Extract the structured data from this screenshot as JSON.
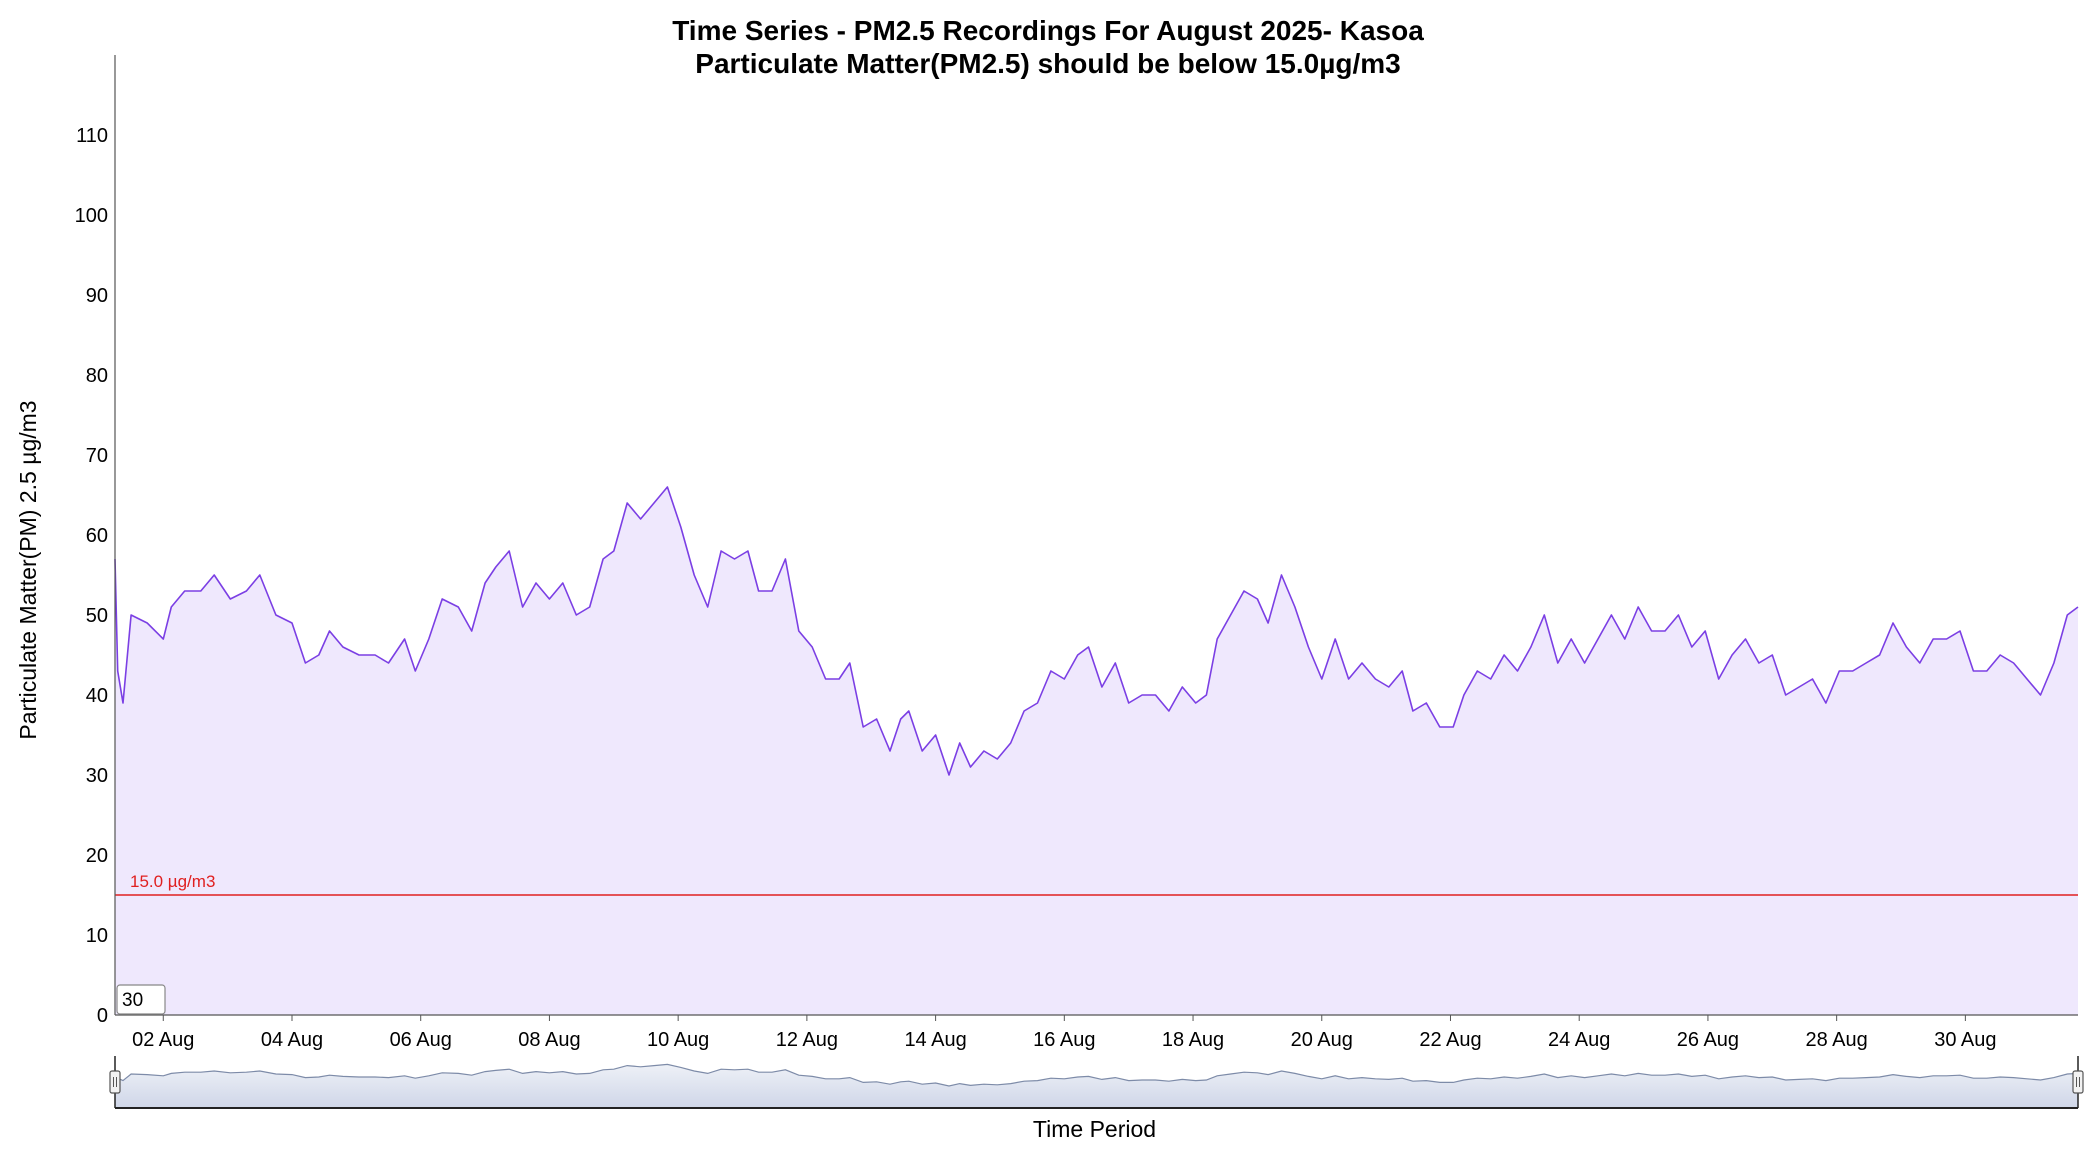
{
  "chart_data": {
    "type": "area",
    "title": "Time Series - PM2.5 Recordings For August 2025- Kasoa",
    "subtitle": "Particulate Matter(PM2.5) should be below 15.0µg/m3",
    "xlabel": "Time Period",
    "ylabel": "Particulate Matter(PM) 2.5 µg/m3",
    "x_start": "2025-08-01",
    "x_end": "2025-08-31",
    "xlim": [
      "2025-08-01T06:00",
      "2025-08-31T18:00"
    ],
    "ylim": [
      0,
      120
    ],
    "yticks": [
      0,
      10,
      20,
      30,
      40,
      50,
      60,
      70,
      80,
      90,
      100,
      110
    ],
    "xtick_labels": [
      "02 Aug",
      "04 Aug",
      "06 Aug",
      "08 Aug",
      "10 Aug",
      "12 Aug",
      "14 Aug",
      "16 Aug",
      "18 Aug",
      "20 Aug",
      "22 Aug",
      "24 Aug",
      "26 Aug",
      "28 Aug",
      "30 Aug"
    ],
    "xtick_dates": [
      "2025-08-02",
      "2025-08-04",
      "2025-08-06",
      "2025-08-08",
      "2025-08-10",
      "2025-08-12",
      "2025-08-14",
      "2025-08-16",
      "2025-08-18",
      "2025-08-20",
      "2025-08-22",
      "2025-08-24",
      "2025-08-26",
      "2025-08-28",
      "2025-08-30"
    ],
    "threshold": {
      "value": 15.0,
      "label": "15.0 µg/m3",
      "color": "#e02020"
    },
    "series": [
      {
        "color": "#7b3fe4",
        "fill": "#efe8fd",
        "points": [
          [
            "2025-08-01T06:00",
            57
          ],
          [
            "2025-08-01T07:00",
            43
          ],
          [
            "2025-08-01T09:00",
            39
          ],
          [
            "2025-08-01T12:00",
            50
          ],
          [
            "2025-08-01T18:00",
            49
          ],
          [
            "2025-08-02T00:00",
            47
          ],
          [
            "2025-08-02T03:00",
            51
          ],
          [
            "2025-08-02T08:00",
            53
          ],
          [
            "2025-08-02T14:00",
            53
          ],
          [
            "2025-08-02T19:00",
            55
          ],
          [
            "2025-08-03T01:00",
            52
          ],
          [
            "2025-08-03T07:00",
            53
          ],
          [
            "2025-08-03T12:00",
            55
          ],
          [
            "2025-08-03T18:00",
            50
          ],
          [
            "2025-08-04T00:00",
            49
          ],
          [
            "2025-08-04T05:00",
            44
          ],
          [
            "2025-08-04T10:00",
            45
          ],
          [
            "2025-08-04T14:00",
            48
          ],
          [
            "2025-08-04T19:00",
            46
          ],
          [
            "2025-08-05T01:00",
            45
          ],
          [
            "2025-08-05T07:00",
            45
          ],
          [
            "2025-08-05T12:00",
            44
          ],
          [
            "2025-08-05T18:00",
            47
          ],
          [
            "2025-08-05T22:00",
            43
          ],
          [
            "2025-08-06T03:00",
            47
          ],
          [
            "2025-08-06T08:00",
            52
          ],
          [
            "2025-08-06T14:00",
            51
          ],
          [
            "2025-08-06T19:00",
            48
          ],
          [
            "2025-08-07T00:00",
            54
          ],
          [
            "2025-08-07T04:00",
            56
          ],
          [
            "2025-08-07T09:00",
            58
          ],
          [
            "2025-08-07T14:00",
            51
          ],
          [
            "2025-08-07T19:00",
            54
          ],
          [
            "2025-08-08T00:00",
            52
          ],
          [
            "2025-08-08T05:00",
            54
          ],
          [
            "2025-08-08T10:00",
            50
          ],
          [
            "2025-08-08T15:00",
            51
          ],
          [
            "2025-08-08T20:00",
            57
          ],
          [
            "2025-08-09T00:00",
            58
          ],
          [
            "2025-08-09T05:00",
            64
          ],
          [
            "2025-08-09T10:00",
            62
          ],
          [
            "2025-08-09T15:00",
            64
          ],
          [
            "2025-08-09T20:00",
            66
          ],
          [
            "2025-08-10T01:00",
            61
          ],
          [
            "2025-08-10T06:00",
            55
          ],
          [
            "2025-08-10T11:00",
            51
          ],
          [
            "2025-08-10T16:00",
            58
          ],
          [
            "2025-08-10T21:00",
            57
          ],
          [
            "2025-08-11T02:00",
            58
          ],
          [
            "2025-08-11T06:00",
            53
          ],
          [
            "2025-08-11T11:00",
            53
          ],
          [
            "2025-08-11T16:00",
            57
          ],
          [
            "2025-08-11T21:00",
            48
          ],
          [
            "2025-08-12T02:00",
            46
          ],
          [
            "2025-08-12T07:00",
            42
          ],
          [
            "2025-08-12T12:00",
            42
          ],
          [
            "2025-08-12T16:00",
            44
          ],
          [
            "2025-08-12T21:00",
            36
          ],
          [
            "2025-08-13T02:00",
            37
          ],
          [
            "2025-08-13T07:00",
            33
          ],
          [
            "2025-08-13T11:00",
            37
          ],
          [
            "2025-08-13T14:00",
            38
          ],
          [
            "2025-08-13T19:00",
            33
          ],
          [
            "2025-08-14T00:00",
            35
          ],
          [
            "2025-08-14T05:00",
            30
          ],
          [
            "2025-08-14T09:00",
            34
          ],
          [
            "2025-08-14T13:00",
            31
          ],
          [
            "2025-08-14T18:00",
            33
          ],
          [
            "2025-08-14T23:00",
            32
          ],
          [
            "2025-08-15T04:00",
            34
          ],
          [
            "2025-08-15T09:00",
            38
          ],
          [
            "2025-08-15T14:00",
            39
          ],
          [
            "2025-08-15T19:00",
            43
          ],
          [
            "2025-08-16T00:00",
            42
          ],
          [
            "2025-08-16T05:00",
            45
          ],
          [
            "2025-08-16T09:00",
            46
          ],
          [
            "2025-08-16T14:00",
            41
          ],
          [
            "2025-08-16T19:00",
            44
          ],
          [
            "2025-08-17T00:00",
            39
          ],
          [
            "2025-08-17T05:00",
            40
          ],
          [
            "2025-08-17T10:00",
            40
          ],
          [
            "2025-08-17T15:00",
            38
          ],
          [
            "2025-08-17T20:00",
            41
          ],
          [
            "2025-08-18T01:00",
            39
          ],
          [
            "2025-08-18T05:00",
            40
          ],
          [
            "2025-08-18T09:00",
            47
          ],
          [
            "2025-08-18T14:00",
            50
          ],
          [
            "2025-08-18T19:00",
            53
          ],
          [
            "2025-08-19T00:00",
            52
          ],
          [
            "2025-08-19T04:00",
            49
          ],
          [
            "2025-08-19T09:00",
            55
          ],
          [
            "2025-08-19T14:00",
            51
          ],
          [
            "2025-08-19T19:00",
            46
          ],
          [
            "2025-08-20T00:00",
            42
          ],
          [
            "2025-08-20T05:00",
            47
          ],
          [
            "2025-08-20T10:00",
            42
          ],
          [
            "2025-08-20T15:00",
            44
          ],
          [
            "2025-08-20T20:00",
            42
          ],
          [
            "2025-08-21T01:00",
            41
          ],
          [
            "2025-08-21T06:00",
            43
          ],
          [
            "2025-08-21T10:00",
            38
          ],
          [
            "2025-08-21T15:00",
            39
          ],
          [
            "2025-08-21T20:00",
            36
          ],
          [
            "2025-08-22T01:00",
            36
          ],
          [
            "2025-08-22T05:00",
            40
          ],
          [
            "2025-08-22T10:00",
            43
          ],
          [
            "2025-08-22T15:00",
            42
          ],
          [
            "2025-08-22T20:00",
            45
          ],
          [
            "2025-08-23T01:00",
            43
          ],
          [
            "2025-08-23T06:00",
            46
          ],
          [
            "2025-08-23T11:00",
            50
          ],
          [
            "2025-08-23T16:00",
            44
          ],
          [
            "2025-08-23T21:00",
            47
          ],
          [
            "2025-08-24T02:00",
            44
          ],
          [
            "2025-08-24T07:00",
            47
          ],
          [
            "2025-08-24T12:00",
            50
          ],
          [
            "2025-08-24T17:00",
            47
          ],
          [
            "2025-08-24T22:00",
            51
          ],
          [
            "2025-08-25T03:00",
            48
          ],
          [
            "2025-08-25T08:00",
            48
          ],
          [
            "2025-08-25T13:00",
            50
          ],
          [
            "2025-08-25T18:00",
            46
          ],
          [
            "2025-08-25T23:00",
            48
          ],
          [
            "2025-08-26T04:00",
            42
          ],
          [
            "2025-08-26T09:00",
            45
          ],
          [
            "2025-08-26T14:00",
            47
          ],
          [
            "2025-08-26T19:00",
            44
          ],
          [
            "2025-08-27T00:00",
            45
          ],
          [
            "2025-08-27T05:00",
            40
          ],
          [
            "2025-08-27T10:00",
            41
          ],
          [
            "2025-08-27T15:00",
            42
          ],
          [
            "2025-08-27T20:00",
            39
          ],
          [
            "2025-08-28T01:00",
            43
          ],
          [
            "2025-08-28T06:00",
            43
          ],
          [
            "2025-08-28T11:00",
            44
          ],
          [
            "2025-08-28T16:00",
            45
          ],
          [
            "2025-08-28T21:00",
            49
          ],
          [
            "2025-08-29T02:00",
            46
          ],
          [
            "2025-08-29T07:00",
            44
          ],
          [
            "2025-08-29T12:00",
            47
          ],
          [
            "2025-08-29T17:00",
            47
          ],
          [
            "2025-08-29T22:00",
            48
          ],
          [
            "2025-08-30T03:00",
            43
          ],
          [
            "2025-08-30T08:00",
            43
          ],
          [
            "2025-08-30T13:00",
            45
          ],
          [
            "2025-08-30T18:00",
            44
          ],
          [
            "2025-08-30T23:00",
            42
          ],
          [
            "2025-08-31T04:00",
            40
          ],
          [
            "2025-08-31T09:00",
            44
          ],
          [
            "2025-08-31T14:00",
            50
          ],
          [
            "2025-08-31T18:00",
            51
          ]
        ]
      }
    ],
    "grid": false,
    "legend": false
  },
  "controls": {
    "period_input_value": "30"
  },
  "colors": {
    "navigator_fill": "#cfd6e8",
    "navigator_line": "#7d8ba8"
  }
}
